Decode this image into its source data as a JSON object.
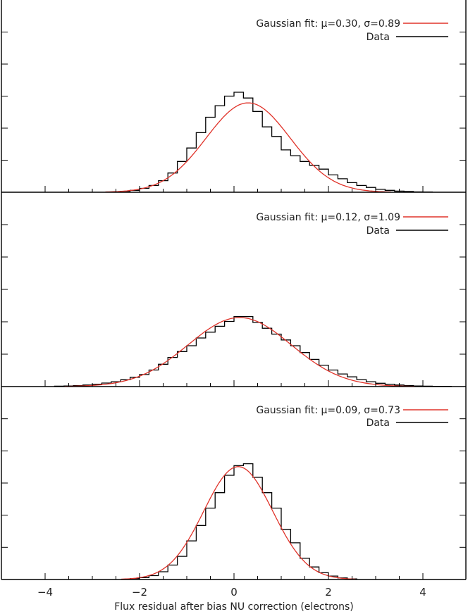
{
  "colors": {
    "data": "#000000",
    "fit": "#e0332a",
    "axis": "#000000"
  },
  "chart_data": {
    "type": "histogram",
    "xlabel": "Flux residual after bias NU correction (electrons)",
    "ylabel": "",
    "xlim": [
      -5,
      5
    ],
    "x_ticks": [
      -4,
      -2,
      0,
      2,
      4
    ],
    "x_tick_labels": [
      "−4",
      "−2",
      "0",
      "2",
      "4"
    ],
    "bin_width": 0.2,
    "grid": false,
    "legend_position": "top-right",
    "panels": [
      {
        "legend": {
          "fit_label": "Gaussian fit: μ=0.30, σ=0.89",
          "data_label": "Data"
        },
        "ylim": [
          0,
          1.0
        ],
        "fit": {
          "mu": 0.3,
          "sigma": 0.89,
          "amplitude": 0.465
        },
        "bins_x": [
          -2.4,
          -2.2,
          -2.0,
          -1.8,
          -1.6,
          -1.4,
          -1.2,
          -1.0,
          -0.8,
          -0.6,
          -0.4,
          -0.2,
          0.0,
          0.2,
          0.4,
          0.6,
          0.8,
          1.0,
          1.2,
          1.4,
          1.6,
          1.8,
          2.0,
          2.2,
          2.4,
          2.6,
          2.8,
          3.0,
          3.2,
          3.4,
          3.6,
          3.8,
          4.0
        ],
        "values": [
          0.005,
          0.01,
          0.02,
          0.035,
          0.06,
          0.1,
          0.16,
          0.23,
          0.31,
          0.39,
          0.45,
          0.5,
          0.52,
          0.49,
          0.42,
          0.34,
          0.29,
          0.22,
          0.19,
          0.16,
          0.14,
          0.12,
          0.09,
          0.07,
          0.05,
          0.035,
          0.025,
          0.015,
          0.01,
          0.006,
          0.004,
          0.002,
          0.001
        ]
      },
      {
        "legend": {
          "fit_label": "Gaussian fit: μ=0.12, σ=1.09",
          "data_label": "Data"
        },
        "ylim": [
          0,
          1.0
        ],
        "fit": {
          "mu": 0.12,
          "sigma": 1.09,
          "amplitude": 0.355
        },
        "bins_x": [
          -3.8,
          -3.6,
          -3.4,
          -3.2,
          -3.0,
          -2.8,
          -2.6,
          -2.4,
          -2.2,
          -2.0,
          -1.8,
          -1.6,
          -1.4,
          -1.2,
          -1.0,
          -0.8,
          -0.6,
          -0.4,
          -0.2,
          0.0,
          0.2,
          0.4,
          0.6,
          0.8,
          1.0,
          1.2,
          1.4,
          1.6,
          1.8,
          2.0,
          2.2,
          2.4,
          2.6,
          2.8,
          3.0,
          3.2,
          3.4,
          3.6,
          3.8,
          4.0,
          4.2,
          4.4
        ],
        "values": [
          0.002,
          0.003,
          0.005,
          0.008,
          0.012,
          0.018,
          0.025,
          0.035,
          0.048,
          0.062,
          0.085,
          0.115,
          0.15,
          0.18,
          0.21,
          0.25,
          0.28,
          0.31,
          0.335,
          0.36,
          0.36,
          0.33,
          0.3,
          0.27,
          0.24,
          0.21,
          0.175,
          0.14,
          0.11,
          0.085,
          0.065,
          0.05,
          0.036,
          0.025,
          0.017,
          0.012,
          0.008,
          0.005,
          0.003,
          0.002,
          0.001,
          0.001
        ]
      },
      {
        "legend": {
          "fit_label": "Gaussian fit: μ=0.09, σ=0.73",
          "data_label": "Data"
        },
        "ylim": [
          0,
          1.0
        ],
        "fit": {
          "mu": 0.09,
          "sigma": 0.73,
          "amplitude": 0.585
        },
        "bins_x": [
          -2.2,
          -2.0,
          -1.8,
          -1.6,
          -1.4,
          -1.2,
          -1.0,
          -0.8,
          -0.6,
          -0.4,
          -0.2,
          0.0,
          0.2,
          0.4,
          0.6,
          0.8,
          1.0,
          1.2,
          1.4,
          1.6,
          1.8,
          2.0,
          2.2,
          2.4
        ],
        "values": [
          0.005,
          0.01,
          0.02,
          0.04,
          0.075,
          0.12,
          0.2,
          0.28,
          0.37,
          0.45,
          0.54,
          0.59,
          0.6,
          0.53,
          0.45,
          0.37,
          0.26,
          0.19,
          0.11,
          0.065,
          0.035,
          0.018,
          0.008,
          0.003
        ]
      }
    ]
  }
}
